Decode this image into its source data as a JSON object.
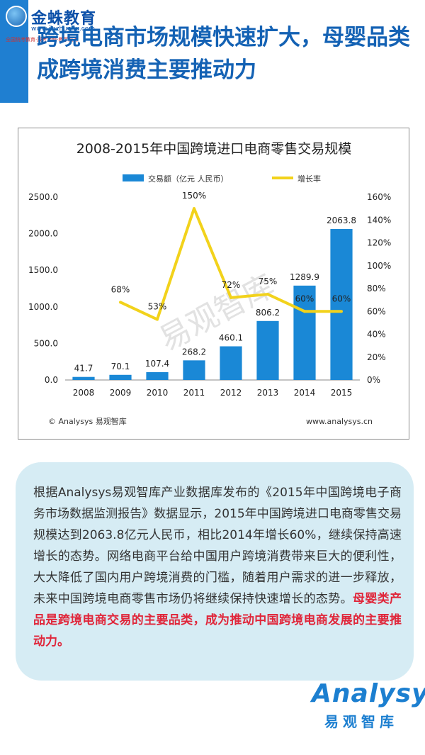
{
  "logo": {
    "name": "金蛛教育",
    "url": "www.jinzhuedu.com",
    "slogan": "全国统考教育·报考流程·教学服务"
  },
  "headline": "跨境电商市场规模快速扩大，母婴品类成跨境消费主要推动力",
  "chart_data": {
    "type": "bar+line",
    "title": "2008-2015年中国跨境进口电商零售交易规模",
    "categories": [
      "2008",
      "2009",
      "2010",
      "2011",
      "2012",
      "2013",
      "2014",
      "2015"
    ],
    "series": [
      {
        "name": "交易额（亿元 人民币）",
        "type": "bar",
        "axis": "left",
        "color": "#1a88d6",
        "values": [
          41.7,
          70.1,
          107.4,
          268.2,
          460.1,
          806.2,
          1289.9,
          2063.8
        ],
        "labels": [
          "41.7",
          "70.1",
          "107.4",
          "268.2",
          "460.1",
          "806.2",
          "1289.9",
          "2063.8"
        ]
      },
      {
        "name": "增长率",
        "type": "line",
        "axis": "right",
        "color": "#f2d21b",
        "points": [
          {
            "x": "2009",
            "y": 68,
            "label": "68%"
          },
          {
            "x": "2010",
            "y": 53,
            "label": "53%"
          },
          {
            "x": "2011",
            "y": 150,
            "label": "150%"
          },
          {
            "x": "2012",
            "y": 72,
            "label": "72%"
          },
          {
            "x": "2013",
            "y": 75,
            "label": "75%"
          },
          {
            "x": "2014",
            "y": 60,
            "label": "60%"
          },
          {
            "x": "2015",
            "y": 60,
            "label": "60%"
          }
        ]
      }
    ],
    "y_left": {
      "range": [
        0,
        2500
      ],
      "ticks": [
        "0.0",
        "500.0",
        "1000.0",
        "1500.0",
        "2000.0",
        "2500.0"
      ]
    },
    "y_right": {
      "range": [
        0,
        160
      ],
      "ticks": [
        "0%",
        "20%",
        "40%",
        "60%",
        "80%",
        "100%",
        "120%",
        "140%",
        "160%"
      ]
    },
    "legend_position": "top",
    "grid": false,
    "watermark": "易观智库",
    "source_left": "© Analysys 易观智库",
    "source_right": "www.analysys.cn"
  },
  "body": {
    "paragraph": "根据Analysys易观智库产业数据库发布的《2015年中国跨境电子商务市场数据监测报告》数据显示，2015年中国跨境进口电商零售交易规模达到2063.8亿元人民币，相比2014年增长60%，继续保持高速增长的态势。网络电商平台给中国用户跨境消费带来巨大的便利性，大大降低了国内用户跨境消费的门槛，随着用户需求的进一步释放，未来中国跨境电商零售市场仍将继续保持快速增长的态势。",
    "highlight": "母婴类产品是跨境电商交易的主要品类，成为推动中国跨境电商发展的主要推动力。"
  },
  "brand": {
    "wordmark": "nalysys",
    "wordmark_initial": "A",
    "chinese": "易观智库"
  }
}
